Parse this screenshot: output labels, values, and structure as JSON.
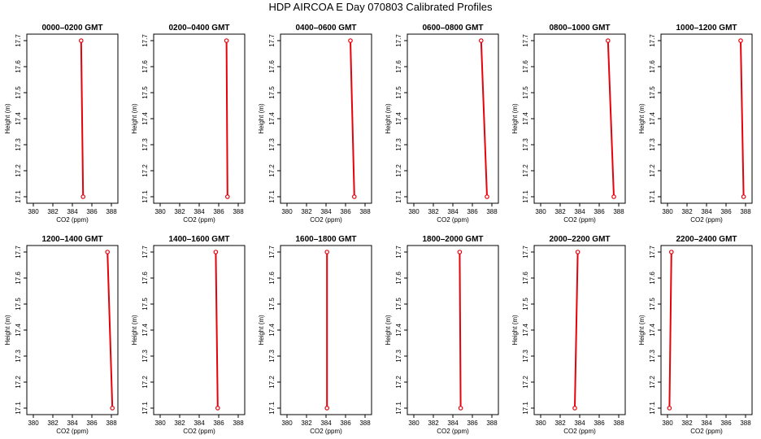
{
  "title": "HDP  AIRCOA E  Day 070803  Calibrated Profiles",
  "colors": {
    "profile": "#e8000b",
    "axis": "#000000",
    "background": "#ffffff"
  },
  "chart_data": {
    "type": "line",
    "xlabel": "CO2 (ppm)",
    "ylabel": "Height (m)",
    "xlim": [
      380,
      388
    ],
    "ylim": [
      17.1,
      17.7
    ],
    "xticks": [
      "380",
      "382",
      "384",
      "386",
      "388"
    ],
    "yticks": [
      "17.1",
      "17.2",
      "17.3",
      "17.4",
      "17.5",
      "17.6",
      "17.7"
    ],
    "grid": false,
    "panels": [
      {
        "title": "0000–0200 GMT",
        "x": [
          385.1,
          384.9
        ],
        "y": [
          17.1,
          17.7
        ]
      },
      {
        "title": "0200–0400 GMT",
        "x": [
          386.9,
          386.8
        ],
        "y": [
          17.1,
          17.7
        ]
      },
      {
        "title": "0400–0600 GMT",
        "x": [
          386.9,
          386.5
        ],
        "y": [
          17.1,
          17.7
        ]
      },
      {
        "title": "0600–0800 GMT",
        "x": [
          387.5,
          386.9
        ],
        "y": [
          17.1,
          17.7
        ]
      },
      {
        "title": "0800–1000 GMT",
        "x": [
          387.5,
          386.9
        ],
        "y": [
          17.1,
          17.7
        ]
      },
      {
        "title": "1000–1200 GMT",
        "x": [
          387.8,
          387.5
        ],
        "y": [
          17.1,
          17.7
        ]
      },
      {
        "title": "1200–1400 GMT",
        "x": [
          388.1,
          387.6
        ],
        "y": [
          17.1,
          17.7
        ]
      },
      {
        "title": "1400–1600 GMT",
        "x": [
          385.9,
          385.7
        ],
        "y": [
          17.1,
          17.7
        ]
      },
      {
        "title": "1600–1800 GMT",
        "x": [
          384.1,
          384.1
        ],
        "y": [
          17.1,
          17.7
        ]
      },
      {
        "title": "1800–2000 GMT",
        "x": [
          384.8,
          384.7
        ],
        "y": [
          17.1,
          17.7
        ]
      },
      {
        "title": "2000–2200 GMT",
        "x": [
          383.5,
          383.8
        ],
        "y": [
          17.1,
          17.7
        ]
      },
      {
        "title": "2200–2400 GMT",
        "x": [
          380.2,
          380.4
        ],
        "y": [
          17.1,
          17.7
        ]
      }
    ]
  }
}
